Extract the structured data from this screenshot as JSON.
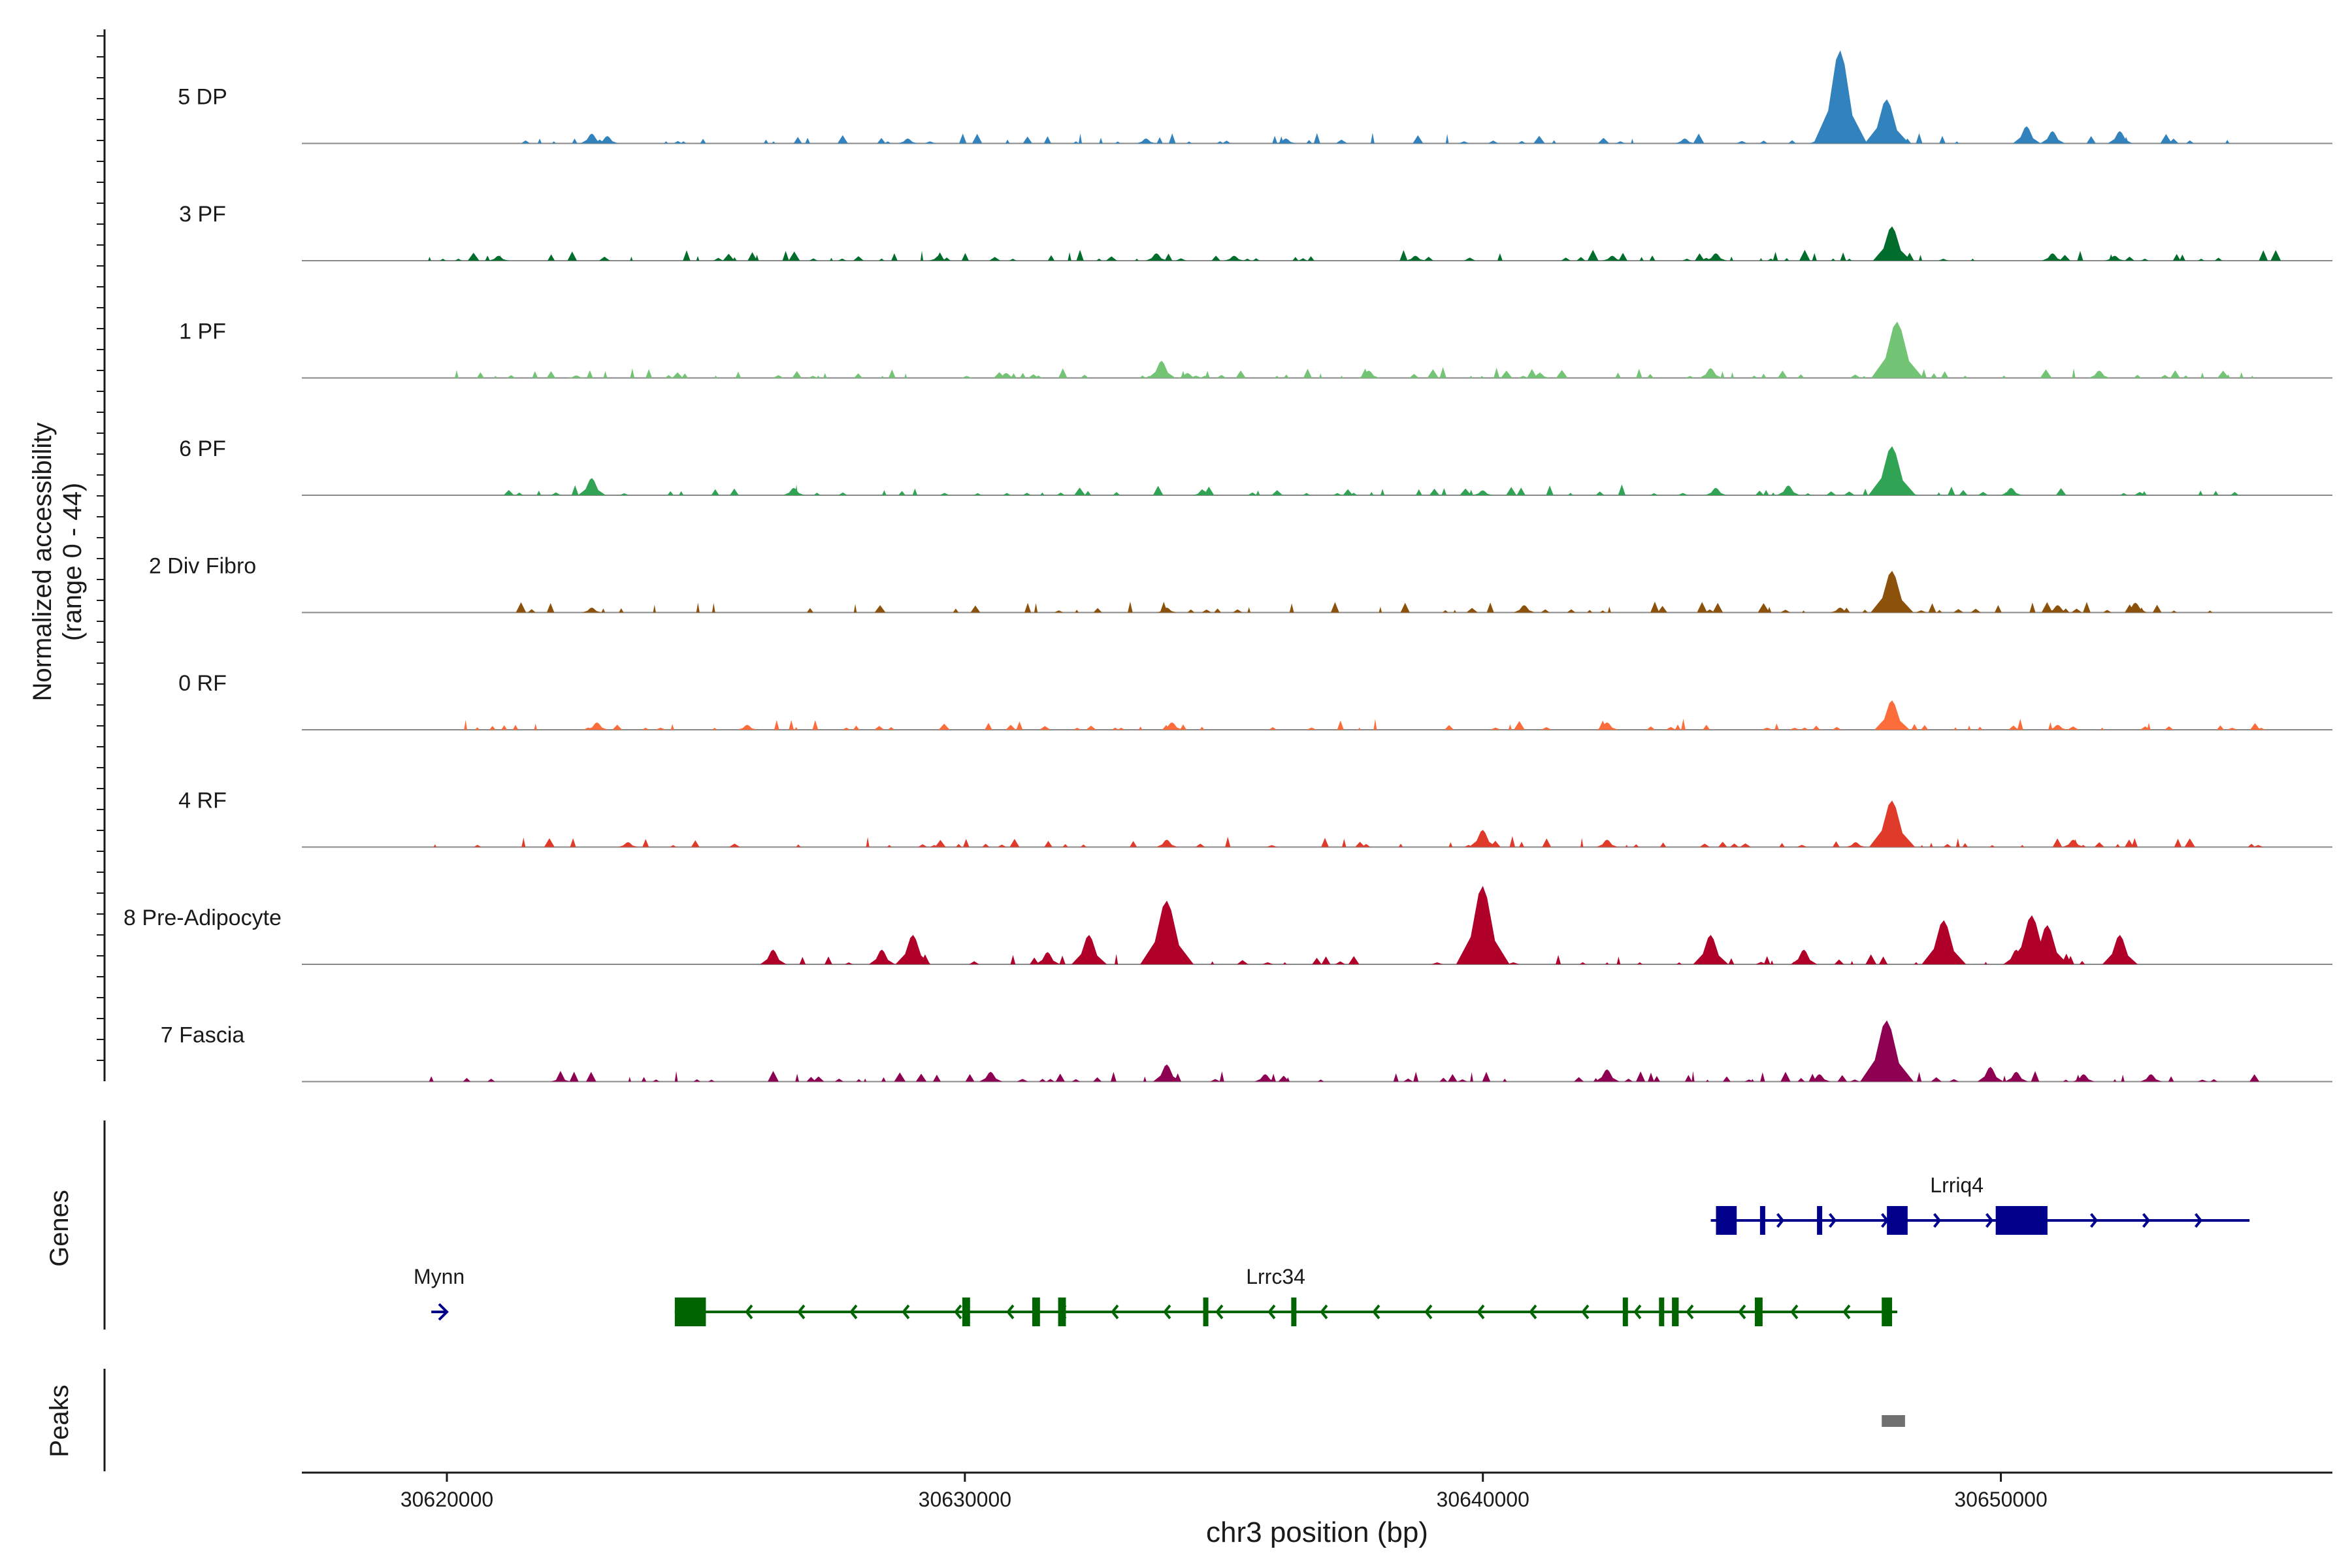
{
  "chart_data": {
    "type": "area",
    "title": "",
    "y_axis_title": [
      "Normalized accessibility",
      "(range 0 - 44)"
    ],
    "y_range": [
      0,
      44
    ],
    "x_axis_title": "chr3 position (bp)",
    "x_range": [
      30617200,
      30656400
    ],
    "x_ticks": [
      {
        "value": 30620000,
        "label": "30620000"
      },
      {
        "value": 30630000,
        "label": "30630000"
      },
      {
        "value": 30640000,
        "label": "30640000"
      },
      {
        "value": 30650000,
        "label": "30650000"
      }
    ],
    "tracks": [
      {
        "name": "5 DP",
        "color": "#3182bd",
        "start": 30621000,
        "end": 30654800,
        "peaks": [
          [
            30622800,
            4
          ],
          [
            30623100,
            3
          ],
          [
            30628900,
            2
          ],
          [
            30633500,
            2
          ],
          [
            30636200,
            2
          ],
          [
            30643900,
            2
          ],
          [
            30646900,
            38
          ],
          [
            30647800,
            18
          ],
          [
            30650500,
            7
          ],
          [
            30651000,
            5
          ],
          [
            30652300,
            5
          ]
        ]
      },
      {
        "name": "3 PF",
        "color": "#006d2c",
        "start": 30619500,
        "end": 30655300,
        "peaks": [
          [
            30621000,
            2
          ],
          [
            30629500,
            2
          ],
          [
            30633700,
            3
          ],
          [
            30635200,
            2
          ],
          [
            30638700,
            2
          ],
          [
            30642500,
            2
          ],
          [
            30644500,
            3
          ],
          [
            30647900,
            14
          ],
          [
            30651000,
            3
          ],
          [
            30652200,
            2
          ]
        ]
      },
      {
        "name": "1 PF",
        "color": "#74c476",
        "start": 30619300,
        "end": 30655000,
        "peaks": [
          [
            30622500,
            1
          ],
          [
            30630800,
            2
          ],
          [
            30633800,
            7
          ],
          [
            30634300,
            2
          ],
          [
            30637800,
            3
          ],
          [
            30641100,
            2
          ],
          [
            30644400,
            4
          ],
          [
            30648000,
            23
          ],
          [
            30651900,
            3
          ]
        ]
      },
      {
        "name": "6 PF",
        "color": "#31a354",
        "start": 30620200,
        "end": 30654800,
        "peaks": [
          [
            30622800,
            7
          ],
          [
            30626700,
            3
          ],
          [
            30634600,
            2
          ],
          [
            30640000,
            2
          ],
          [
            30644500,
            3
          ],
          [
            30645900,
            4
          ],
          [
            30647900,
            20
          ],
          [
            30650200,
            3
          ]
        ]
      },
      {
        "name": "2 Div Fibro",
        "color": "#8c510a",
        "start": 30621000,
        "end": 30655300,
        "peaks": [
          [
            30622800,
            2
          ],
          [
            30633900,
            2
          ],
          [
            30640800,
            3
          ],
          [
            30646900,
            2
          ],
          [
            30647900,
            17
          ],
          [
            30651100,
            3
          ],
          [
            30652600,
            4
          ]
        ]
      },
      {
        "name": "0 RF",
        "color": "#fc6d3b",
        "start": 30619800,
        "end": 30655000,
        "peaks": [
          [
            30622900,
            3
          ],
          [
            30625800,
            2
          ],
          [
            30634000,
            3
          ],
          [
            30642400,
            3
          ],
          [
            30647900,
            12
          ],
          [
            30651100,
            2
          ]
        ]
      },
      {
        "name": "4 RF",
        "color": "#e03a2a",
        "start": 30619500,
        "end": 30655000,
        "peaks": [
          [
            30623500,
            2
          ],
          [
            30633900,
            3
          ],
          [
            30640000,
            7
          ],
          [
            30642400,
            3
          ],
          [
            30647200,
            2
          ],
          [
            30647900,
            19
          ],
          [
            30651400,
            3
          ]
        ]
      },
      {
        "name": "8 Pre-Adipocyte",
        "color": "#b0002a",
        "start": 30626300,
        "end": 30652500,
        "peaks": [
          [
            30626300,
            6
          ],
          [
            30628400,
            6
          ],
          [
            30629000,
            12
          ],
          [
            30631600,
            5
          ],
          [
            30632400,
            12
          ],
          [
            30633900,
            26
          ],
          [
            30640000,
            32
          ],
          [
            30644400,
            12
          ],
          [
            30646200,
            6
          ],
          [
            30648900,
            18
          ],
          [
            30650300,
            6
          ],
          [
            30650600,
            20
          ],
          [
            30650900,
            16
          ],
          [
            30652300,
            12
          ]
        ]
      },
      {
        "name": "7 Fascia",
        "color": "#8e0152",
        "start": 30619500,
        "end": 30654800,
        "peaks": [
          [
            30622200,
            2
          ],
          [
            30630500,
            4
          ],
          [
            30633900,
            7
          ],
          [
            30635800,
            3
          ],
          [
            30642400,
            5
          ],
          [
            30646500,
            3
          ],
          [
            30647800,
            25
          ],
          [
            30649800,
            6
          ],
          [
            30650300,
            4
          ],
          [
            30651600,
            3
          ],
          [
            30652900,
            3
          ]
        ]
      }
    ],
    "genes_track": {
      "label": "Genes",
      "genes": [
        {
          "name": "Lrriq4",
          "strand": "+",
          "start": 30644400,
          "end": 30654800,
          "color": "#00008b",
          "exons": [
            [
              30644500,
              30644900
            ],
            [
              30645350,
              30645450
            ],
            [
              30646450,
              30646520
            ],
            [
              30647800,
              30648200
            ],
            [
              30649900,
              30650900
            ]
          ]
        },
        {
          "name": "Lrrc34",
          "strand": "-",
          "start": 30624400,
          "end": 30648000,
          "color": "#006400",
          "exons": [
            [
              30624400,
              30625000
            ],
            [
              30629950,
              30630100
            ],
            [
              30631300,
              30631450
            ],
            [
              30631800,
              30631950
            ],
            [
              30634600,
              30634700
            ],
            [
              30636300,
              30636400
            ],
            [
              30642700,
              30642800
            ],
            [
              30643400,
              30643500
            ],
            [
              30643650,
              30643780
            ],
            [
              30645250,
              30645400
            ],
            [
              30647700,
              30647900
            ]
          ]
        },
        {
          "name": "Mynn",
          "strand": "+",
          "start": 30619700,
          "end": 30620000,
          "color": "#00008b",
          "exons": []
        }
      ]
    },
    "peaks_track": {
      "label": "Peaks",
      "color": "#707070",
      "regions": [
        [
          30647700,
          30648150
        ]
      ]
    }
  }
}
